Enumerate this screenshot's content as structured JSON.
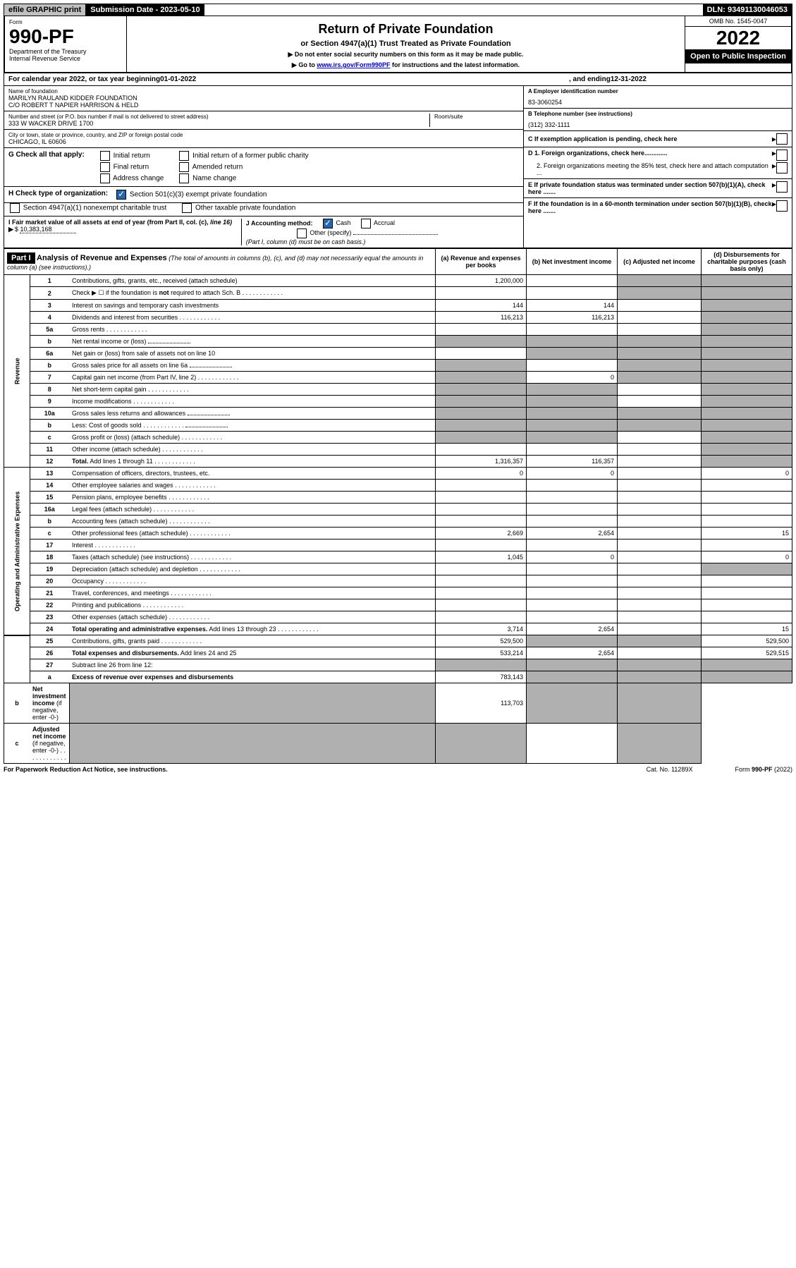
{
  "topbar": {
    "efile": "efile GRAPHIC print",
    "submission": "Submission Date - 2023-05-10",
    "dln": "DLN: 93491130046053"
  },
  "header": {
    "form_label": "Form",
    "form_no": "990-PF",
    "dept": "Department of the Treasury",
    "irs": "Internal Revenue Service",
    "title": "Return of Private Foundation",
    "subtitle": "or Section 4947(a)(1) Trust Treated as Private Foundation",
    "instr1": "▶ Do not enter social security numbers on this form as it may be made public.",
    "instr2_pre": "▶ Go to ",
    "instr2_link": "www.irs.gov/Form990PF",
    "instr2_post": " for instructions and the latest information.",
    "omb": "OMB No. 1545-0047",
    "year": "2022",
    "open": "Open to Public Inspection"
  },
  "cal": {
    "pre": "For calendar year 2022, or tax year beginning ",
    "begin": "01-01-2022",
    "mid": ", and ending ",
    "end": "12-31-2022"
  },
  "id": {
    "name_label": "Name of foundation",
    "name1": "MARILYN RAULAND KIDDER FOUNDATION",
    "name2": "C/O ROBERT T NAPIER HARRISON & HELD",
    "addr_label": "Number and street (or P.O. box number if mail is not delivered to street address)",
    "addr": "333 W WACKER DRIVE 1700",
    "room_label": "Room/suite",
    "city_label": "City or town, state or province, country, and ZIP or foreign postal code",
    "city": "CHICAGO, IL  60606",
    "ein_label": "A Employer identification number",
    "ein": "83-3060254",
    "phone_label": "B Telephone number (see instructions)",
    "phone": "(312) 332-1111",
    "c_label": "C If exemption application is pending, check here",
    "d1_label": "D 1. Foreign organizations, check here.............",
    "d2_label": "2. Foreign organizations meeting the 85% test, check here and attach computation ...",
    "e_label": "E  If private foundation status was terminated under section 507(b)(1)(A), check here .......",
    "f_label": "F  If the foundation is in a 60-month termination under section 507(b)(1)(B), check here ......."
  },
  "g": {
    "label": "G Check all that apply:",
    "opts": [
      "Initial return",
      "Initial return of a former public charity",
      "Final return",
      "Amended return",
      "Address change",
      "Name change"
    ]
  },
  "h": {
    "label": "H Check type of organization:",
    "opt1": "Section 501(c)(3) exempt private foundation",
    "opt2": "Section 4947(a)(1) nonexempt charitable trust",
    "opt3": "Other taxable private foundation"
  },
  "i": {
    "label_pre": "I Fair market value of all assets at end of year (from Part II, col. (c), ",
    "label_line": "line 16)",
    "value": "10,383,168"
  },
  "j": {
    "label": "J Accounting method:",
    "cash": "Cash",
    "accrual": "Accrual",
    "other": "Other (specify)",
    "note": "(Part I, column (d) must be on cash basis.)"
  },
  "part1": {
    "label": "Part I",
    "title": "Analysis of Revenue and Expenses",
    "title_note": " (The total of amounts in columns (b), (c), and (d) may not necessarily equal the amounts in column (a) (see instructions).)",
    "cols": {
      "a": "(a)  Revenue and expenses per books",
      "b": "(b)  Net investment income",
      "c": "(c)  Adjusted net income",
      "d": "(d)  Disbursements for charitable purposes (cash basis only)"
    }
  },
  "sections": {
    "revenue": "Revenue",
    "expenses": "Operating and Administrative Expenses"
  },
  "rows": [
    {
      "n": "1",
      "d": "Contributions, gifts, grants, etc., received (attach schedule)",
      "a": "1,200,000",
      "b": "",
      "c": "g",
      "dd": "g"
    },
    {
      "n": "2",
      "d": "Check ▶ ☐ if the foundation is <b>not</b> required to attach Sch. B",
      "dots": true,
      "a": "",
      "b": "",
      "c": "g",
      "dd": "g"
    },
    {
      "n": "3",
      "d": "Interest on savings and temporary cash investments",
      "a": "144",
      "b": "144",
      "c": "",
      "dd": "g"
    },
    {
      "n": "4",
      "d": "Dividends and interest from securities",
      "dots": true,
      "a": "116,213",
      "b": "116,213",
      "c": "",
      "dd": "g"
    },
    {
      "n": "5a",
      "d": "Gross rents",
      "dots": true,
      "a": "",
      "b": "",
      "c": "",
      "dd": "g"
    },
    {
      "n": "b",
      "d": "Net rental income or (loss)",
      "inset": true,
      "a": "g",
      "b": "g",
      "c": "g",
      "dd": "g"
    },
    {
      "n": "6a",
      "d": "Net gain or (loss) from sale of assets not on line 10",
      "a": "",
      "b": "g",
      "c": "g",
      "dd": "g"
    },
    {
      "n": "b",
      "d": "Gross sales price for all assets on line 6a",
      "inset": true,
      "a": "g",
      "b": "",
      "c": "g",
      "dd": "g"
    },
    {
      "n": "7",
      "d": "Capital gain net income (from Part IV, line 2)",
      "dots": true,
      "a": "g",
      "b": "0",
      "c": "g",
      "dd": "g"
    },
    {
      "n": "8",
      "d": "Net short-term capital gain",
      "dots": true,
      "a": "g",
      "b": "g",
      "c": "",
      "dd": "g"
    },
    {
      "n": "9",
      "d": "Income modifications",
      "dots": true,
      "a": "g",
      "b": "g",
      "c": "",
      "dd": "g"
    },
    {
      "n": "10a",
      "d": "Gross sales less returns and allowances",
      "inset": true,
      "a": "g",
      "b": "g",
      "c": "g",
      "dd": "g"
    },
    {
      "n": "b",
      "d": "Less: Cost of goods sold",
      "dots": true,
      "inset": true,
      "a": "g",
      "b": "g",
      "c": "g",
      "dd": "g"
    },
    {
      "n": "c",
      "d": "Gross profit or (loss) (attach schedule)",
      "dots": true,
      "a": "g",
      "b": "g",
      "c": "",
      "dd": "g"
    },
    {
      "n": "11",
      "d": "Other income (attach schedule)",
      "dots": true,
      "a": "",
      "b": "",
      "c": "",
      "dd": "g"
    },
    {
      "n": "12",
      "d": "<b>Total.</b> Add lines 1 through 11",
      "dots": true,
      "a": "1,316,357",
      "b": "116,357",
      "c": "",
      "dd": "g"
    },
    {
      "n": "13",
      "d": "Compensation of officers, directors, trustees, etc.",
      "a": "0",
      "b": "0",
      "c": "",
      "dd": "0"
    },
    {
      "n": "14",
      "d": "Other employee salaries and wages",
      "dots": true,
      "a": "",
      "b": "",
      "c": "",
      "dd": ""
    },
    {
      "n": "15",
      "d": "Pension plans, employee benefits",
      "dots": true,
      "a": "",
      "b": "",
      "c": "",
      "dd": ""
    },
    {
      "n": "16a",
      "d": "Legal fees (attach schedule)",
      "dots": true,
      "a": "",
      "b": "",
      "c": "",
      "dd": ""
    },
    {
      "n": "b",
      "d": "Accounting fees (attach schedule)",
      "dots": true,
      "a": "",
      "b": "",
      "c": "",
      "dd": ""
    },
    {
      "n": "c",
      "d": "Other professional fees (attach schedule)",
      "dots": true,
      "a": "2,669",
      "b": "2,654",
      "c": "",
      "dd": "15"
    },
    {
      "n": "17",
      "d": "Interest",
      "dots": true,
      "a": "",
      "b": "",
      "c": "",
      "dd": ""
    },
    {
      "n": "18",
      "d": "Taxes (attach schedule) (see instructions)",
      "dots": true,
      "a": "1,045",
      "b": "0",
      "c": "",
      "dd": "0"
    },
    {
      "n": "19",
      "d": "Depreciation (attach schedule) and depletion",
      "dots": true,
      "a": "",
      "b": "",
      "c": "",
      "dd": "g"
    },
    {
      "n": "20",
      "d": "Occupancy",
      "dots": true,
      "a": "",
      "b": "",
      "c": "",
      "dd": ""
    },
    {
      "n": "21",
      "d": "Travel, conferences, and meetings",
      "dots": true,
      "a": "",
      "b": "",
      "c": "",
      "dd": ""
    },
    {
      "n": "22",
      "d": "Printing and publications",
      "dots": true,
      "a": "",
      "b": "",
      "c": "",
      "dd": ""
    },
    {
      "n": "23",
      "d": "Other expenses (attach schedule)",
      "dots": true,
      "a": "",
      "b": "",
      "c": "",
      "dd": ""
    },
    {
      "n": "24",
      "d": "<b>Total operating and administrative expenses.</b> Add lines 13 through 23",
      "dots": true,
      "a": "3,714",
      "b": "2,654",
      "c": "",
      "dd": "15"
    },
    {
      "n": "25",
      "d": "Contributions, gifts, grants paid",
      "dots": true,
      "a": "529,500",
      "b": "g",
      "c": "g",
      "dd": "529,500"
    },
    {
      "n": "26",
      "d": "<b>Total expenses and disbursements.</b> Add lines 24 and 25",
      "a": "533,214",
      "b": "2,654",
      "c": "",
      "dd": "529,515"
    },
    {
      "n": "27",
      "d": "Subtract line 26 from line 12:",
      "a": "g",
      "b": "g",
      "c": "g",
      "dd": "g"
    },
    {
      "n": "a",
      "d": "<b>Excess of revenue over expenses and disbursements</b>",
      "a": "783,143",
      "b": "g",
      "c": "g",
      "dd": "g"
    },
    {
      "n": "b",
      "d": "<b>Net investment income</b> (if negative, enter -0-)",
      "a": "g",
      "b": "113,703",
      "c": "g",
      "dd": "g"
    },
    {
      "n": "c",
      "d": "<b>Adjusted net income</b> (if negative, enter -0-)",
      "dots": true,
      "a": "g",
      "b": "g",
      "c": "",
      "dd": "g"
    }
  ],
  "footer": {
    "left": "For Paperwork Reduction Act Notice, see instructions.",
    "mid": "Cat. No. 11289X",
    "right": "Form 990-PF (2022)"
  }
}
